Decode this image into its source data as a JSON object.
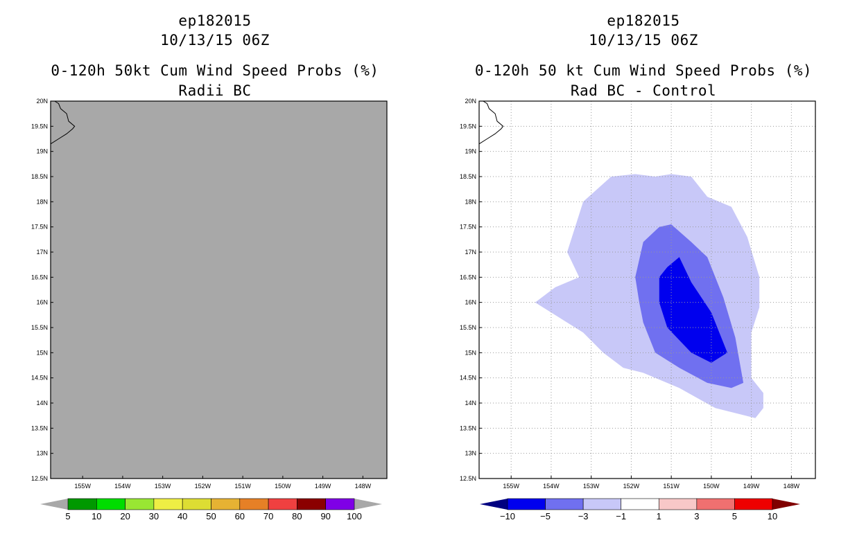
{
  "panels": [
    {
      "storm": "ep182015",
      "time": "10/13/15 06Z",
      "title": "0-120h 50kt Cum Wind Speed Probs (%)",
      "subtitle": "Radii BC",
      "colorbar": {
        "labels": [
          "5",
          "10",
          "20",
          "30",
          "40",
          "50",
          "60",
          "70",
          "80",
          "90",
          "100"
        ],
        "colors": [
          "#009900",
          "#00dd00",
          "#99e633",
          "#eeee44",
          "#dddd33",
          "#e6b233",
          "#e68026",
          "#f04040",
          "#8b0000",
          "#7f00e6"
        ],
        "end_colors": [
          "#a8a8a8",
          "#a8a8a8"
        ]
      }
    },
    {
      "storm": "ep182015",
      "time": "10/13/15 06Z",
      "title": "0-120h 50 kt Cum Wind Speed Probs (%)",
      "subtitle": "Rad BC - Control",
      "colorbar": {
        "labels": [
          "−10",
          "−5",
          "−3",
          "−1",
          "1",
          "3",
          "5",
          "10"
        ],
        "colors": [
          "#0000ee",
          "#7070f0",
          "#c8c8f8",
          "#ffffff",
          "#f8c8c8",
          "#f07070",
          "#ee0000"
        ],
        "end_colors": [
          "#000080",
          "#800000"
        ]
      }
    }
  ],
  "chart_data": [
    {
      "type": "heatmap",
      "title": "0-120h 50kt Cum Wind Speed Probs (%)",
      "subtitle": "Radii BC",
      "xlim": [
        -155.8,
        -147.4
      ],
      "ylim": [
        12.5,
        20
      ],
      "x_ticks": [
        "155W",
        "154W",
        "153W",
        "152W",
        "151W",
        "150W",
        "149W",
        "148W"
      ],
      "y_ticks": [
        "12.5N",
        "13N",
        "13.5N",
        "14N",
        "14.5N",
        "15N",
        "15.5N",
        "16N",
        "16.5N",
        "17N",
        "17.5N",
        "18N",
        "18.5N",
        "19N",
        "19.5N",
        "20N"
      ],
      "grid": false,
      "fill": "no data (uniform gray)",
      "background_color": "#a8a8a8"
    },
    {
      "type": "heatmap",
      "title": "0-120h 50 kt Cum Wind Speed Probs (%)",
      "subtitle": "Rad BC - Control",
      "xlim": [
        -155.8,
        -147.4
      ],
      "ylim": [
        12.5,
        20
      ],
      "x_ticks": [
        "155W",
        "154W",
        "153W",
        "152W",
        "151W",
        "150W",
        "149W",
        "148W"
      ],
      "y_ticks": [
        "12.5N",
        "13N",
        "13.5N",
        "14N",
        "14.5N",
        "15N",
        "15.5N",
        "16N",
        "16.5N",
        "17N",
        "17.5N",
        "18N",
        "18.5N",
        "19N",
        "19.5N",
        "20N"
      ],
      "grid": true,
      "contours": [
        {
          "level": "-3 to -1",
          "color": "#c8c8f8",
          "points": [
            [
              -154.4,
              16.0
            ],
            [
              -153.9,
              16.3
            ],
            [
              -153.3,
              16.5
            ],
            [
              -153.6,
              17.0
            ],
            [
              -153.2,
              18.0
            ],
            [
              -152.5,
              18.5
            ],
            [
              -151.9,
              18.55
            ],
            [
              -151.4,
              18.5
            ],
            [
              -151.0,
              18.55
            ],
            [
              -150.5,
              18.5
            ],
            [
              -150.1,
              18.1
            ],
            [
              -149.5,
              17.9
            ],
            [
              -149.1,
              17.3
            ],
            [
              -148.8,
              16.5
            ],
            [
              -148.8,
              15.9
            ],
            [
              -149.0,
              15.4
            ],
            [
              -149.0,
              14.5
            ],
            [
              -148.7,
              14.2
            ],
            [
              -148.7,
              13.9
            ],
            [
              -148.9,
              13.7
            ],
            [
              -149.9,
              13.9
            ],
            [
              -150.8,
              14.3
            ],
            [
              -151.7,
              14.6
            ],
            [
              -152.2,
              14.7
            ],
            [
              -152.7,
              15.0
            ],
            [
              -153.2,
              15.4
            ],
            [
              -154.0,
              15.8
            ],
            [
              -154.4,
              16.0
            ]
          ]
        },
        {
          "level": "-5 to -3",
          "color": "#7070f0",
          "points": [
            [
              -151.9,
              16.5
            ],
            [
              -151.7,
              17.2
            ],
            [
              -151.3,
              17.5
            ],
            [
              -151.0,
              17.55
            ],
            [
              -150.5,
              17.2
            ],
            [
              -150.1,
              16.9
            ],
            [
              -149.7,
              16.1
            ],
            [
              -149.4,
              15.3
            ],
            [
              -149.2,
              14.4
            ],
            [
              -149.5,
              14.3
            ],
            [
              -150.1,
              14.4
            ],
            [
              -150.8,
              14.7
            ],
            [
              -151.4,
              15.0
            ],
            [
              -151.7,
              15.6
            ],
            [
              -151.8,
              16.0
            ],
            [
              -151.9,
              16.5
            ]
          ]
        },
        {
          "level": "-10 to -5",
          "color": "#0000ee",
          "points": [
            [
              -151.3,
              16.5
            ],
            [
              -151.1,
              16.7
            ],
            [
              -150.8,
              16.9
            ],
            [
              -150.5,
              16.4
            ],
            [
              -150.0,
              15.8
            ],
            [
              -149.6,
              15.0
            ],
            [
              -150.0,
              14.8
            ],
            [
              -150.5,
              15.0
            ],
            [
              -151.1,
              15.5
            ],
            [
              -151.3,
              16.0
            ],
            [
              -151.3,
              16.5
            ]
          ]
        }
      ]
    }
  ]
}
